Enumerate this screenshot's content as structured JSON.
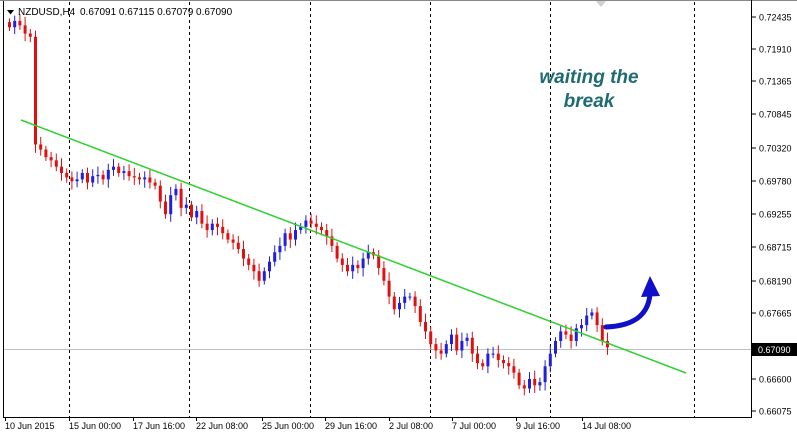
{
  "header": {
    "symbol": "NZDUSD,H4",
    "ohlc": "0.67091 0.67115 0.67079 0.67090"
  },
  "annotation": [
    "waiting the",
    "break"
  ],
  "chart_data": {
    "type": "candlestick",
    "colors": {
      "bullish": "#1f1fdc",
      "bearish": "#e01010",
      "trendline": "#2fd12f",
      "arrow": "#1010c8",
      "annotation": "#1f6b73",
      "grid": "#000000"
    },
    "y_ticks": [
      "0.72435",
      "0.71910",
      "0.71365",
      "0.70845",
      "0.70320",
      "0.69780",
      "0.69255",
      "0.68715",
      "0.68190",
      "0.67665",
      "0.67090",
      "0.66600",
      "0.66075"
    ],
    "ylim": [
      0.66,
      0.7258
    ],
    "x_ticks": [
      "10 Jun 2015",
      "15 Jun 00:00",
      "17 Jun 16:00",
      "22 Jun 08:00",
      "25 Jun 00:00",
      "29 Jun 16:00",
      "2 Jul 08:00",
      "7 Jul 00:00",
      "9 Jul 16:00",
      "14 Jul 08:00"
    ],
    "current_price": "0.67090",
    "bars_total": 116,
    "trendline": {
      "start": [
        0,
        0.708
      ],
      "end": [
        131,
        0.6667
      ]
    },
    "breakout_arrow": "up",
    "closes": [
      0.7215,
      0.7225,
      0.7218,
      0.7205,
      0.72,
      0.703,
      0.7022,
      0.701,
      0.7005,
      0.6995,
      0.6985,
      0.6978,
      0.6972,
      0.6975,
      0.6985,
      0.697,
      0.698,
      0.6982,
      0.6975,
      0.699,
      0.6995,
      0.6985,
      0.6988,
      0.698,
      0.6978,
      0.6975,
      0.6978,
      0.697,
      0.6965,
      0.694,
      0.692,
      0.695,
      0.696,
      0.693,
      0.6935,
      0.6915,
      0.6925,
      0.6905,
      0.6895,
      0.6905,
      0.69,
      0.689,
      0.688,
      0.6875,
      0.6865,
      0.685,
      0.684,
      0.683,
      0.6815,
      0.683,
      0.6845,
      0.686,
      0.687,
      0.689,
      0.688,
      0.6895,
      0.69,
      0.691,
      0.6905,
      0.69,
      0.6895,
      0.6885,
      0.687,
      0.685,
      0.684,
      0.683,
      0.684,
      0.6835,
      0.685,
      0.686,
      0.6855,
      0.6835,
      0.6815,
      0.679,
      0.677,
      0.678,
      0.679,
      0.679,
      0.6775,
      0.675,
      0.6735,
      0.6715,
      0.6705,
      0.67,
      0.6715,
      0.673,
      0.6705,
      0.672,
      0.6725,
      0.67,
      0.6685,
      0.668,
      0.67,
      0.67,
      0.669,
      0.6685,
      0.668,
      0.667,
      0.665,
      0.6645,
      0.666,
      0.665,
      0.6655,
      0.668,
      0.67,
      0.672,
      0.6735,
      0.673,
      0.672,
      0.674,
      0.6745,
      0.676,
      0.6765,
      0.6745,
      0.672,
      0.671
    ]
  }
}
